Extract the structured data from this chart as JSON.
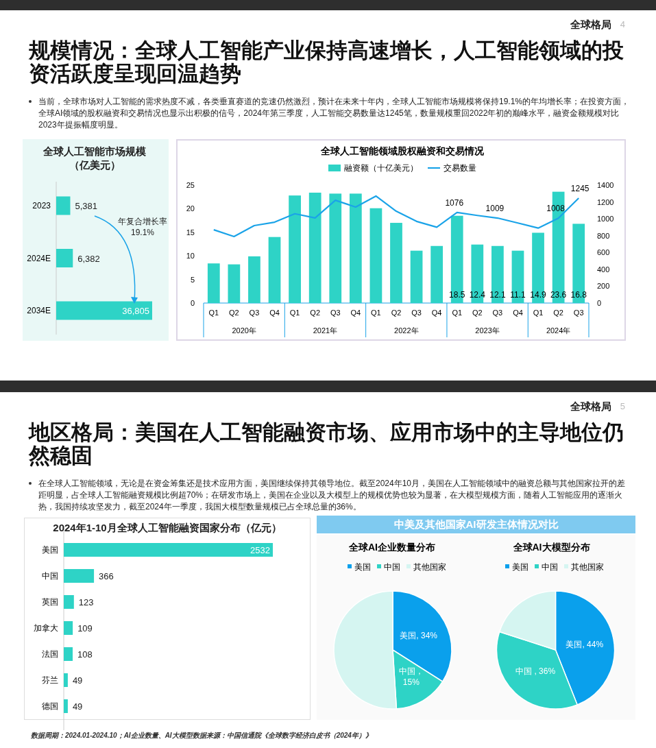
{
  "chart_data": [
    {
      "type": "other",
      "title": "规模情况：全球人工智能产业保持高速增长，人工智能领域的投资活跃度呈现回温趋势",
      "annotations": [
        "全球格局",
        "4",
        "当前，全球市场对人工智能的需求热度不减，各类垂直赛道的竞速仍然激烈，预计在未来十年内，全球人工智能市场规模将保持19.1%的年均增长率；在投资方面，全球AI领域的股权融资和交易情况也显示出积极的信号，2024年第三季度，人工智能交易数量达1245笔，数量规模重回2022年初的巅峰水平，融资金额规模对比2023年提振幅度明显。"
      ]
    },
    {
      "type": "bar",
      "orientation": "horizontal",
      "title": "全球人工智能市场规模（亿美元）",
      "categories": [
        "2023",
        "2024E",
        "2034E"
      ],
      "values": [
        5381,
        6382,
        36805
      ],
      "value_labels": [
        "5,381",
        "6,382",
        "36,805"
      ],
      "color": "#2ed3c6",
      "annotations": [
        "年复合增长率 19.1%"
      ]
    },
    {
      "type": "bar",
      "title": "全球人工智能领域股权融资和交易情况",
      "categories": [
        "Q1",
        "Q2",
        "Q3",
        "Q4",
        "Q1",
        "Q2",
        "Q3",
        "Q4",
        "Q1",
        "Q2",
        "Q3",
        "Q4",
        "Q1",
        "Q2",
        "Q3",
        "Q4",
        "Q1",
        "Q2",
        "Q3"
      ],
      "series": [
        {
          "name": "融资额（十亿美元）",
          "type": "bar",
          "color": "#2ed3c6",
          "values": [
            8.4,
            8.2,
            9.9,
            14.0,
            22.8,
            23.4,
            23.2,
            23.2,
            20.1,
            17.0,
            11.1,
            12.1,
            18.5,
            12.4,
            12.1,
            11.1,
            14.9,
            23.6,
            16.8
          ],
          "value_labels": [
            null,
            null,
            null,
            null,
            null,
            null,
            null,
            null,
            null,
            null,
            null,
            null,
            "18.5",
            "12.4",
            "12.1",
            "11.1",
            "14.9",
            "23.6",
            "16.8"
          ]
        },
        {
          "name": "交易数量",
          "type": "line",
          "axis": "y2",
          "color": "#1aa3e8",
          "values": [
            870,
            790,
            920,
            960,
            1060,
            1010,
            1220,
            1140,
            1270,
            1090,
            970,
            900,
            1076,
            1040,
            1009,
            950,
            890,
            1008,
            1245
          ],
          "value_labels": [
            null,
            null,
            null,
            null,
            null,
            null,
            null,
            null,
            null,
            null,
            null,
            null,
            "1076",
            null,
            "1009",
            null,
            null,
            "1008",
            "1245"
          ]
        }
      ],
      "ylim": [
        0,
        25
      ],
      "yticks": [
        0,
        5,
        10,
        15,
        20,
        25
      ],
      "y2lim": [
        0,
        1400
      ],
      "y2ticks": [
        0,
        200,
        400,
        600,
        800,
        1000,
        1200,
        1400
      ],
      "legend": "top",
      "annotations": [
        "2020年",
        "2021年",
        "2022年",
        "2023年",
        "2024年"
      ]
    },
    {
      "type": "other",
      "title": "地区格局：美国在人工智能融资市场、应用市场中的主导地位仍然稳固",
      "annotations": [
        "全球格局",
        "5",
        "在全球人工智能领域，无论是在资金筹集还是技术应用方面，美国继续保持其领导地位。截至2024年10月，美国在人工智能领域中的融资总额与其他国家拉开的差距明显，占全球人工智能融资规模比例超70%；在研发市场上，美国在企业以及大模型上的规模优势也较为显著，在大模型规模方面，随着人工智能应用的逐渐火热，我国持续攻坚发力，截至2024年一季度，我国大模型数量规模已占全球总量的36%。"
      ]
    },
    {
      "type": "bar",
      "orientation": "horizontal",
      "title": "2024年1-10月全球人工智能融资国家分布（亿元）",
      "categories": [
        "美国",
        "中国",
        "英国",
        "加拿大",
        "法国",
        "芬兰",
        "德国"
      ],
      "values": [
        2532,
        366,
        123,
        109,
        108,
        49,
        49
      ],
      "color": "#2ed3c6",
      "data_labels": true
    },
    {
      "type": "other",
      "title": "中美及其他国家AI研发主体情况对比"
    },
    {
      "type": "pie",
      "title": "全球AI企业数量分布",
      "categories": [
        "美国",
        "中国",
        "其他国家"
      ],
      "values": [
        34,
        15,
        51
      ],
      "colors": [
        "#0aa0ec",
        "#2ed3c6",
        "#d5f5f1"
      ],
      "value_labels": [
        "美国, 34%",
        "中国，15%",
        null
      ],
      "legend": "top"
    },
    {
      "type": "pie",
      "title": "全球AI大模型分布",
      "categories": [
        "美国",
        "中国",
        "其他国家"
      ],
      "values": [
        44,
        36,
        20
      ],
      "colors": [
        "#0aa0ec",
        "#2ed3c6",
        "#d5f5f1"
      ],
      "value_labels": [
        "美国, 44%",
        "中国 , 36%",
        null
      ],
      "legend": "top",
      "annotations": [
        "数据周期：2024.01-2024.10；AI企业数量、AI大模型数据来源：中国信通院《全球数字经济白皮书（2024年）》"
      ]
    }
  ]
}
